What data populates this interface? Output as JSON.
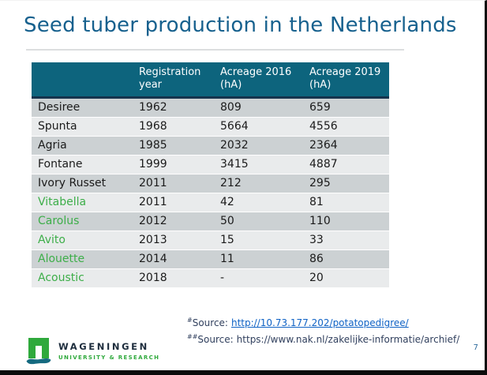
{
  "slide": {
    "title": "Seed tuber production in the Netherlands",
    "page_number": "7"
  },
  "table": {
    "headers": [
      "",
      "Registration year",
      "Acreage 2016 (hA)",
      "Acreage 2019 (hA)"
    ],
    "rows": [
      {
        "variety": "Desiree",
        "year": "1962",
        "acreage_2016": "809",
        "acreage_2019": "659",
        "green": false
      },
      {
        "variety": "Spunta",
        "year": "1968",
        "acreage_2016": "5664",
        "acreage_2019": "4556",
        "green": false
      },
      {
        "variety": "Agria",
        "year": "1985",
        "acreage_2016": "2032",
        "acreage_2019": "2364",
        "green": false
      },
      {
        "variety": "Fontane",
        "year": "1999",
        "acreage_2016": "3415",
        "acreage_2019": "4887",
        "green": false
      },
      {
        "variety": "Ivory Russet",
        "year": "2011",
        "acreage_2016": "212",
        "acreage_2019": "295",
        "green": false
      },
      {
        "variety": "Vitabella",
        "year": "2011",
        "acreage_2016": "42",
        "acreage_2019": "81",
        "green": true
      },
      {
        "variety": "Carolus",
        "year": "2012",
        "acreage_2016": "50",
        "acreage_2019": "110",
        "green": true
      },
      {
        "variety": "Avito",
        "year": "2013",
        "acreage_2016": "15",
        "acreage_2019": "33",
        "green": true
      },
      {
        "variety": "Alouette",
        "year": "2014",
        "acreage_2016": "11",
        "acreage_2019": "86",
        "green": true
      },
      {
        "variety": "Acoustic",
        "year": "2018",
        "acreage_2016": "-",
        "acreage_2019": "20",
        "green": true
      }
    ]
  },
  "sources": {
    "line1": {
      "marker": "#",
      "label": "Source:",
      "url": "http://10.73.177.202/potatopedigree/"
    },
    "line2": {
      "marker": "##",
      "label": "Source:",
      "url": "https://www.nak.nl/zakelijke-informatie/archief/"
    }
  },
  "footer": {
    "logo_title": "WAGENINGEN",
    "logo_subtitle": "UNIVERSITY & RESEARCH"
  },
  "colors": {
    "title": "#17618e",
    "table_header_bg": "#0d647d",
    "table_header_border": "#15334d",
    "row_odd": "#ccd1d3",
    "row_even": "#e9ebec",
    "green_text": "#3dae49",
    "link": "#0f62c5",
    "source_text": "#31405e",
    "logo_green": "#2fa93c",
    "logo_wave": "#156a80",
    "logo_text": "#1e2d3d",
    "border_black": "#0b0b0b"
  }
}
